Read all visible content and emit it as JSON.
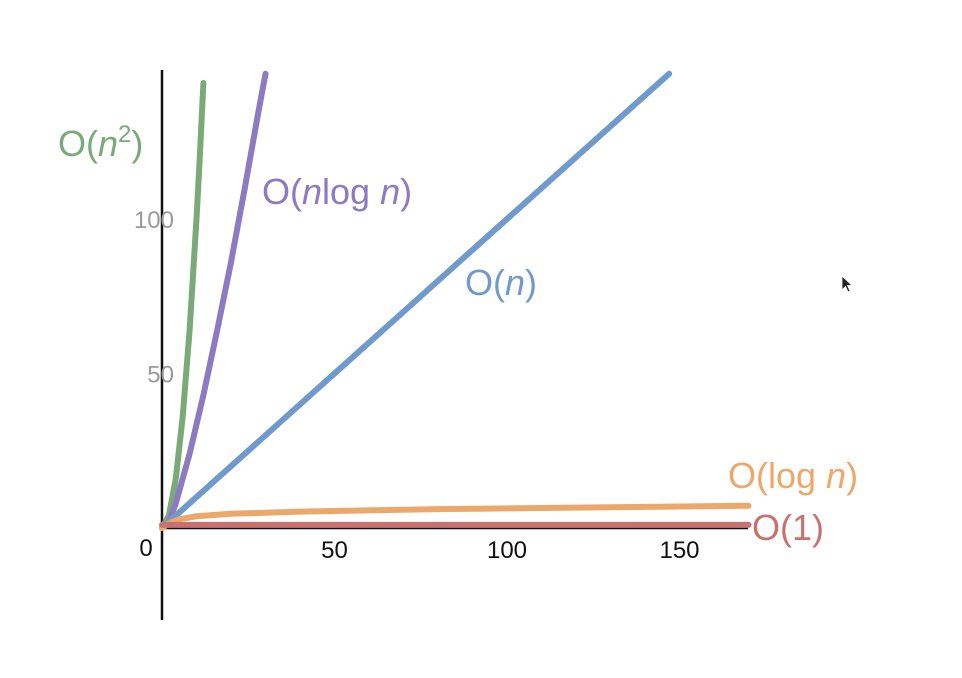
{
  "chart_data": {
    "type": "line",
    "title": "",
    "xlabel": "",
    "ylabel": "",
    "xlim": [
      0,
      170
    ],
    "ylim": [
      -30,
      150
    ],
    "origin_label": "0",
    "x_ticks": [
      "50",
      "100",
      "150"
    ],
    "y_ticks": [
      "50",
      "100"
    ],
    "grid": false,
    "series": [
      {
        "id": "n2",
        "name_parts": [
          {
            "text": "O(",
            "italic": false
          },
          {
            "text": "n",
            "italic": true
          },
          {
            "text": "2",
            "italic": false,
            "sup": true
          },
          {
            "text": ")",
            "italic": false
          }
        ],
        "color": "#7aaa78",
        "function": "n^2",
        "points": [
          [
            0,
            0
          ],
          [
            2,
            4
          ],
          [
            4,
            16
          ],
          [
            6,
            36
          ],
          [
            8,
            64
          ],
          [
            10,
            100
          ],
          [
            11,
            121
          ],
          [
            12,
            144
          ]
        ]
      },
      {
        "id": "nlogn",
        "name_parts": [
          {
            "text": "O(",
            "italic": false
          },
          {
            "text": "n",
            "italic": true
          },
          {
            "text": "log ",
            "italic": false
          },
          {
            "text": "n",
            "italic": true
          },
          {
            "text": ")",
            "italic": false
          }
        ],
        "color": "#8b7bc0",
        "function": "n log2 n",
        "points": [
          [
            0,
            0
          ],
          [
            2,
            2
          ],
          [
            4,
            8
          ],
          [
            8,
            24
          ],
          [
            12,
            43
          ],
          [
            16,
            64
          ],
          [
            20,
            86
          ],
          [
            24,
            110
          ],
          [
            28,
            135
          ],
          [
            30,
            147
          ]
        ]
      },
      {
        "id": "n",
        "name_parts": [
          {
            "text": "O(",
            "italic": false
          },
          {
            "text": "n",
            "italic": true
          },
          {
            "text": ")",
            "italic": false
          }
        ],
        "color": "#6f9acb",
        "function": "n",
        "points": [
          [
            0,
            0
          ],
          [
            50,
            50
          ],
          [
            100,
            100
          ],
          [
            147,
            147
          ]
        ]
      },
      {
        "id": "logn",
        "name_parts": [
          {
            "text": "O(log ",
            "italic": false
          },
          {
            "text": "n",
            "italic": true
          },
          {
            "text": ")",
            "italic": false
          }
        ],
        "color": "#eca86a",
        "function": "log2 n",
        "points": [
          [
            0,
            0
          ],
          [
            1,
            0.8
          ],
          [
            2,
            1.5
          ],
          [
            5,
            2.8
          ],
          [
            10,
            3.8
          ],
          [
            20,
            4.6
          ],
          [
            40,
            5.3
          ],
          [
            80,
            6.1
          ],
          [
            120,
            6.6
          ],
          [
            170,
            7.2
          ]
        ]
      },
      {
        "id": "const",
        "name_parts": [
          {
            "text": "O(1)",
            "italic": false
          }
        ],
        "color": "#c9716e",
        "function": "1",
        "points": [
          [
            0,
            1
          ],
          [
            170,
            1
          ]
        ]
      }
    ]
  }
}
